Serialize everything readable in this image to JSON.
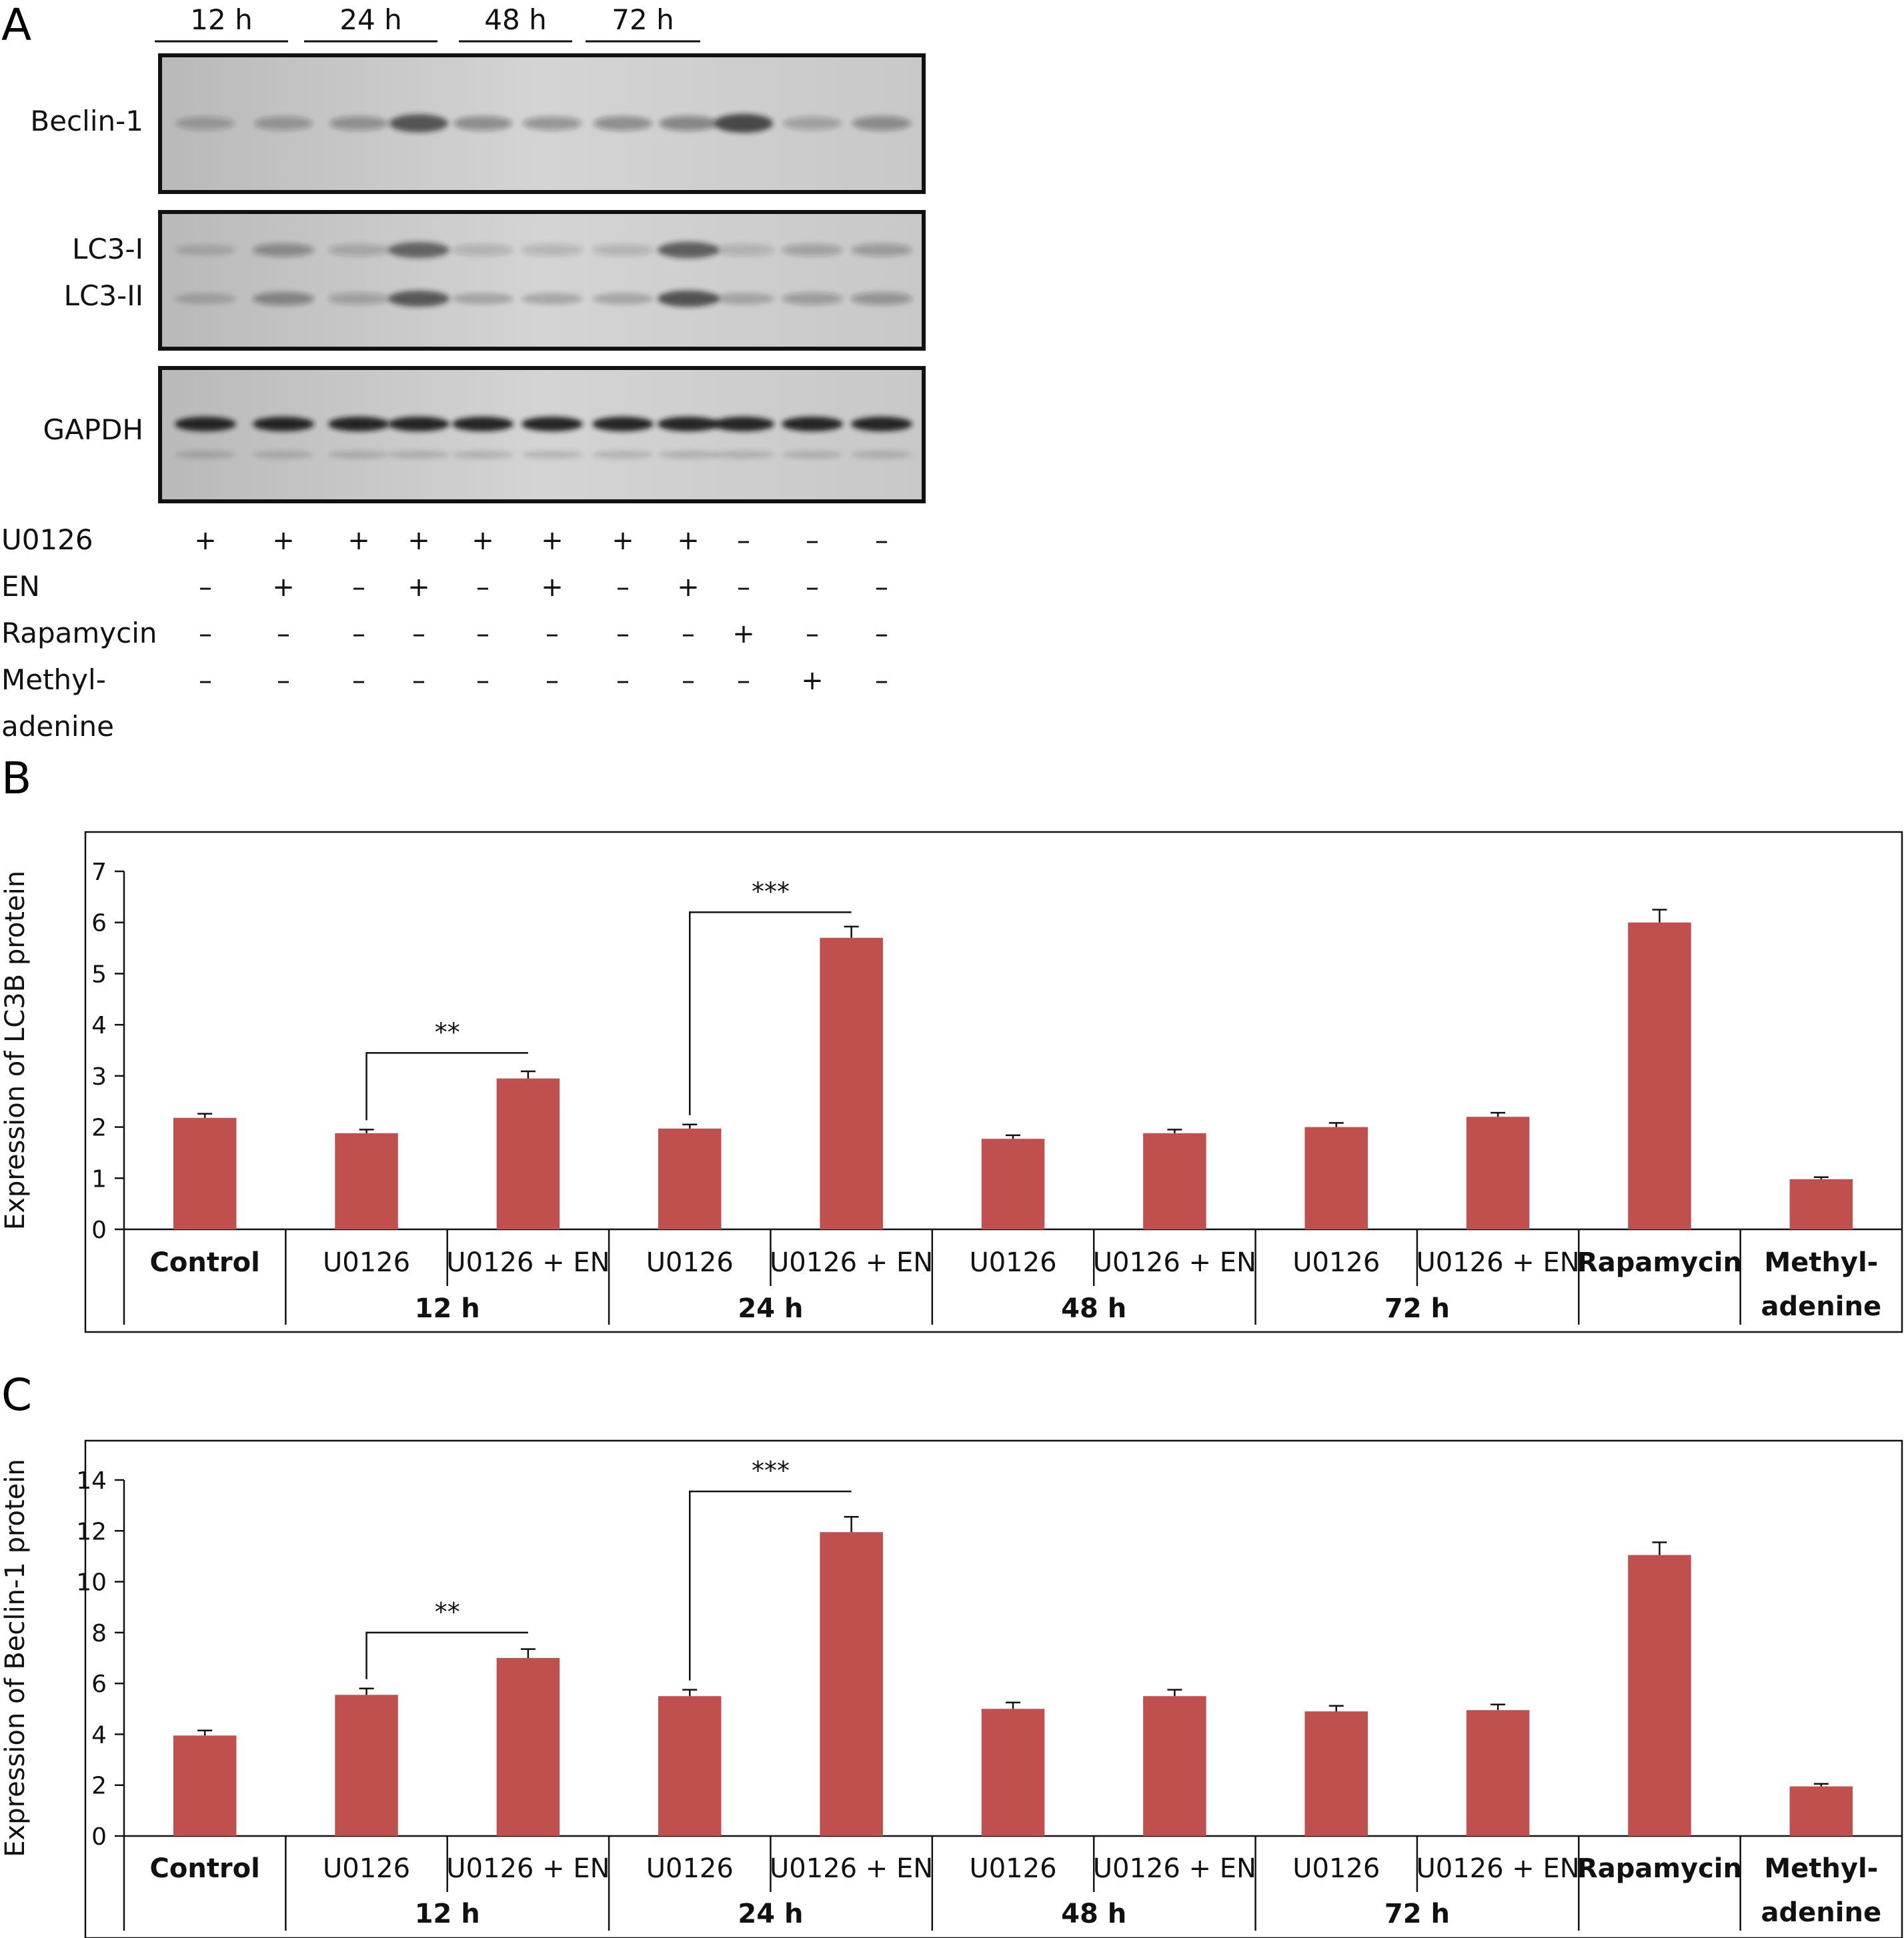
{
  "figure": {
    "panel_a": {
      "letter": "A",
      "time_groups": [
        "12 h",
        "24 h",
        "48 h",
        "72 h"
      ],
      "blot_labels": [
        "Beclin-1",
        "LC3-I",
        "LC3-II",
        "GAPDH"
      ],
      "treatment_rows": [
        {
          "label": "U0126",
          "signs": [
            "+",
            "+",
            "+",
            "+",
            "+",
            "+",
            "+",
            "+",
            "–",
            "–",
            "–"
          ]
        },
        {
          "label": "EN",
          "signs": [
            "–",
            "+",
            "–",
            "+",
            "–",
            "+",
            "–",
            "+",
            "–",
            "–",
            "–"
          ]
        },
        {
          "label": "Rapamycin",
          "signs": [
            "–",
            "–",
            "–",
            "–",
            "–",
            "–",
            "–",
            "–",
            "+",
            "–",
            "–"
          ]
        },
        {
          "label": "Methyl-",
          "label2": "adenine",
          "signs": [
            "–",
            "–",
            "–",
            "–",
            "–",
            "–",
            "–",
            "–",
            "–",
            "+",
            "–"
          ]
        }
      ],
      "band_color": "#1a1a1a",
      "membrane_color": "#cdcdcd"
    },
    "panel_b": {
      "letter": "B"
    },
    "panel_c": {
      "letter": "C"
    }
  },
  "chart_data": [
    {
      "type": "bar",
      "ylabel": "Expression of LC3B protein",
      "ylim": [
        0,
        7
      ],
      "yticks": [
        0,
        1,
        2,
        3,
        4,
        5,
        6,
        7
      ],
      "categories": [
        "Control",
        "U0126",
        "U0126 + EN",
        "U0126",
        "U0126 + EN",
        "U0126",
        "U0126 + EN",
        "U0126",
        "U0126 + EN",
        "Rapamycin",
        "Methyl-adenine"
      ],
      "category_lines": [
        [
          "Control"
        ],
        [
          "U0126"
        ],
        [
          "U0126 + EN"
        ],
        [
          "U0126"
        ],
        [
          "U0126 + EN"
        ],
        [
          "U0126"
        ],
        [
          "U0126 + EN"
        ],
        [
          "U0126"
        ],
        [
          "U0126 + EN"
        ],
        [
          "Rapamycin"
        ],
        [
          "Methyl-",
          "adenine"
        ]
      ],
      "bold_categories": [
        0,
        9,
        10
      ],
      "groups": [
        "12 h",
        "24 h",
        "48 h",
        "72 h"
      ],
      "values": [
        2.18,
        1.88,
        2.95,
        1.97,
        5.7,
        1.77,
        1.88,
        2.0,
        2.2,
        6.0,
        0.98
      ],
      "errors": [
        0.08,
        0.07,
        0.14,
        0.08,
        0.22,
        0.07,
        0.07,
        0.08,
        0.08,
        0.25,
        0.04
      ],
      "significance": [
        {
          "from": 1,
          "to": 2,
          "label": "**",
          "level": 3.45
        },
        {
          "from": 3,
          "to": 4,
          "label": "***",
          "level": 6.2
        }
      ],
      "bar_color": "#c0504d",
      "grid": false
    },
    {
      "type": "bar",
      "ylabel": "Expression of Beclin-1 protein",
      "ylim": [
        0,
        14
      ],
      "yticks": [
        0,
        2,
        4,
        6,
        8,
        10,
        12,
        14
      ],
      "categories": [
        "Control",
        "U0126",
        "U0126 + EN",
        "U0126",
        "U0126 + EN",
        "U0126",
        "U0126 + EN",
        "U0126",
        "U0126 + EN",
        "Rapamycin",
        "Methyl-adenine"
      ],
      "category_lines": [
        [
          "Control"
        ],
        [
          "U0126"
        ],
        [
          "U0126 + EN"
        ],
        [
          "U0126"
        ],
        [
          "U0126 + EN"
        ],
        [
          "U0126"
        ],
        [
          "U0126 + EN"
        ],
        [
          "U0126"
        ],
        [
          "U0126 + EN"
        ],
        [
          "Rapamycin"
        ],
        [
          "Methyl-",
          "adenine"
        ]
      ],
      "bold_categories": [
        0,
        9,
        10
      ],
      "groups": [
        "12 h",
        "24 h",
        "48 h",
        "72 h"
      ],
      "values": [
        3.95,
        5.55,
        7.0,
        5.5,
        11.95,
        5.0,
        5.5,
        4.9,
        4.95,
        11.05,
        1.95
      ],
      "errors": [
        0.2,
        0.25,
        0.35,
        0.25,
        0.6,
        0.25,
        0.25,
        0.22,
        0.22,
        0.5,
        0.1
      ],
      "significance": [
        {
          "from": 1,
          "to": 2,
          "label": "**",
          "level": 8.0
        },
        {
          "from": 3,
          "to": 4,
          "label": "***",
          "level": 13.55
        }
      ],
      "bar_color": "#c0504d",
      "grid": false
    }
  ]
}
